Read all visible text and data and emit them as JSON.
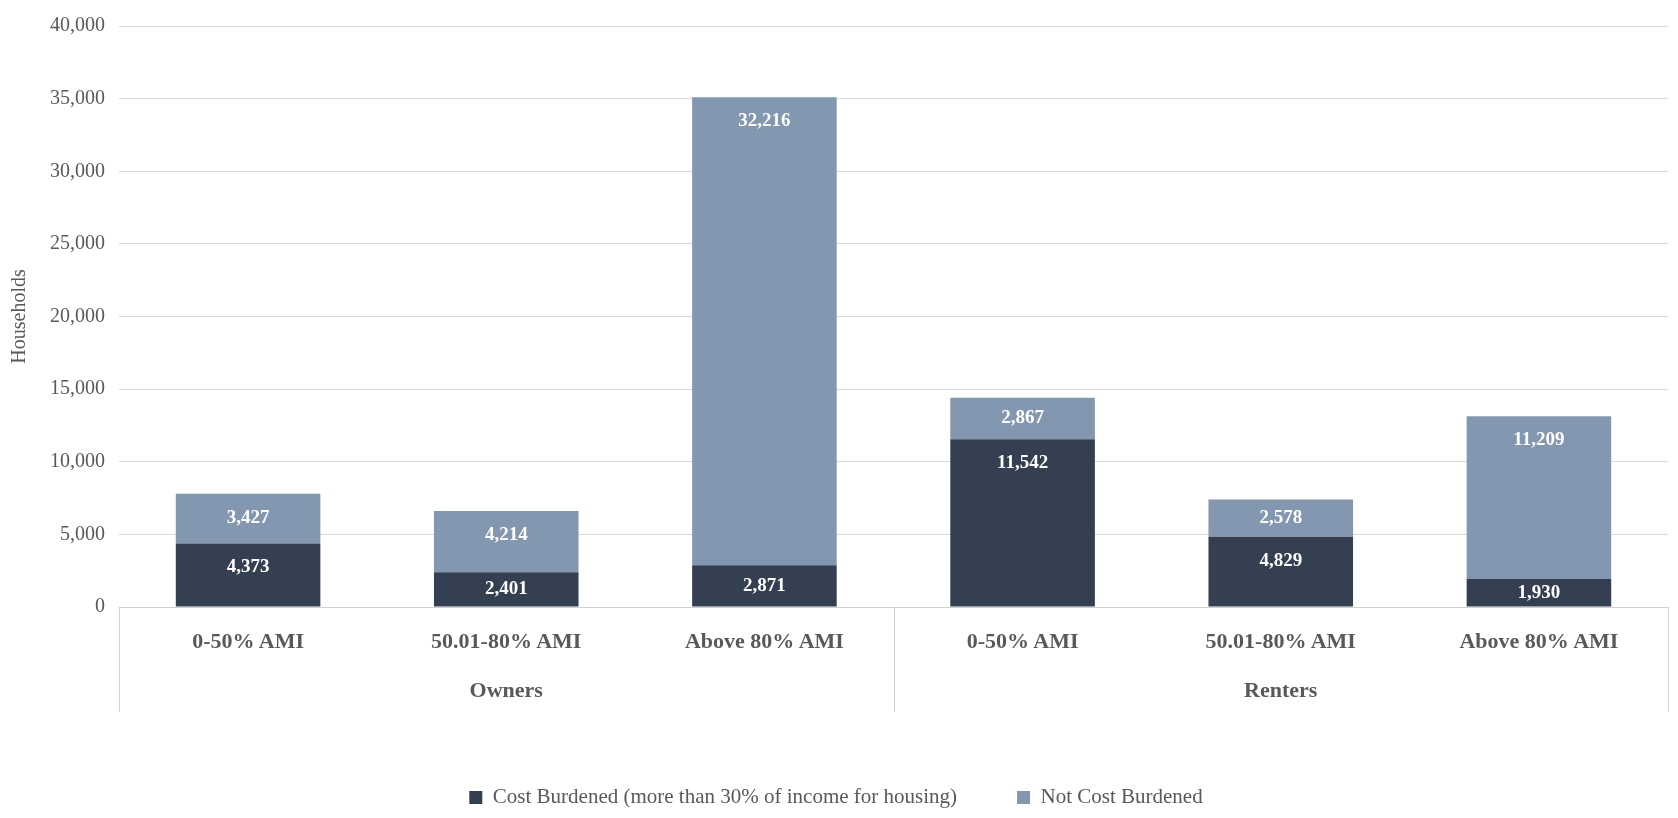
{
  "chart_data": {
    "type": "bar",
    "stacked": true,
    "ylabel": "Households",
    "categories": [
      "0-50% AMI",
      "50.01-80% AMI",
      "Above 80% AMI",
      "0-50% AMI",
      "50.01-80% AMI",
      "Above 80% AMI"
    ],
    "annotations": [
      "Owners",
      "Renters"
    ],
    "series": [
      {
        "name": "Cost Burdened (more than 30% of income for housing)",
        "color": "#343f52",
        "values": [
          4373,
          2401,
          2871,
          11542,
          4829,
          1930
        ],
        "value_labels": [
          "4,373",
          "2,401",
          "2,871",
          "11,542",
          "4,829",
          "1,930"
        ]
      },
      {
        "name": "Not Cost Burdened",
        "color": "#8497b0",
        "values": [
          3427,
          4214,
          32216,
          2867,
          2578,
          11209
        ],
        "value_labels": [
          "3,427",
          "4,214",
          "32,216",
          "2,867",
          "2,578",
          "11,209"
        ]
      }
    ],
    "ylim": [
      0,
      40000
    ],
    "yticks": [
      0,
      {
        "value": 5000,
        "label": "5,000"
      },
      {
        "value": 10000,
        "label": "10,000"
      },
      {
        "value": 15000,
        "label": "15,000"
      },
      {
        "value": 20000,
        "label": "20,000"
      },
      {
        "value": 25000,
        "label": "25,000"
      },
      {
        "value": 30000,
        "label": "30,000"
      },
      {
        "value": 35000,
        "label": "35,000"
      },
      {
        "value": 40000,
        "label": "40,000"
      }
    ],
    "grid": "y",
    "legend": "bottom"
  }
}
